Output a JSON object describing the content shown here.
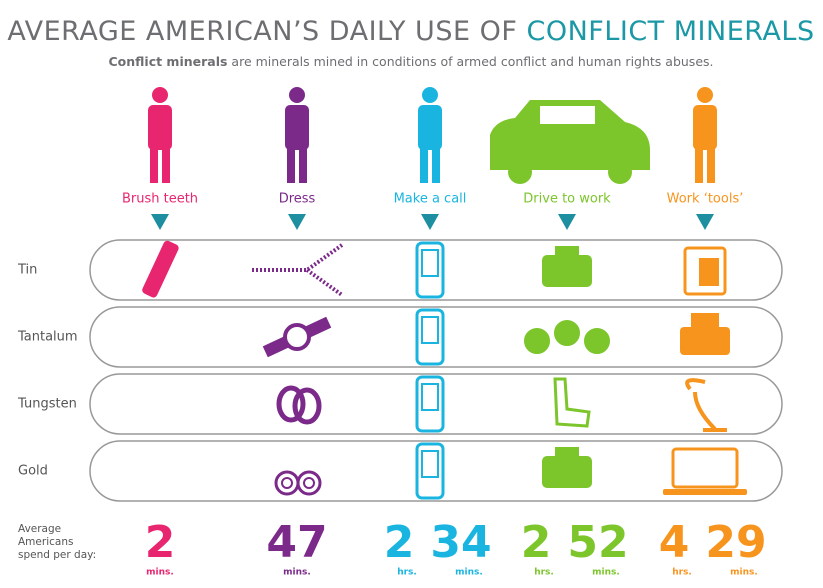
{
  "header": {
    "title": "AVERAGE AMERICAN’S DAILY USE OF",
    "title_highlight": "CONFLICT MINERALS",
    "subtitle_bold": "Conflict minerals",
    "subtitle": " are minerals mined in conditions of armed conflict and human rights abuses."
  },
  "activities": [
    "Brush teeth",
    "Dress",
    "Make a call",
    "Drive to work",
    "Work ‘tools’"
  ],
  "minerals": [
    "Tin",
    "Tantalum",
    "Tungsten",
    "Gold"
  ],
  "time_label": [
    "Average",
    "Americans",
    "spend per day:"
  ],
  "times": [
    [
      {
        "value": "2",
        "unit": "mins."
      }
    ],
    [
      {
        "value": "47",
        "unit": "mins."
      }
    ],
    [
      {
        "value": "2",
        "unit": "hrs."
      },
      {
        "value": "34",
        "unit": "mins."
      }
    ],
    [
      {
        "value": "2",
        "unit": "hrs."
      },
      {
        "value": "52",
        "unit": "mins."
      }
    ],
    [
      {
        "value": "4",
        "unit": "hrs."
      },
      {
        "value": "29",
        "unit": "mins."
      }
    ]
  ]
}
